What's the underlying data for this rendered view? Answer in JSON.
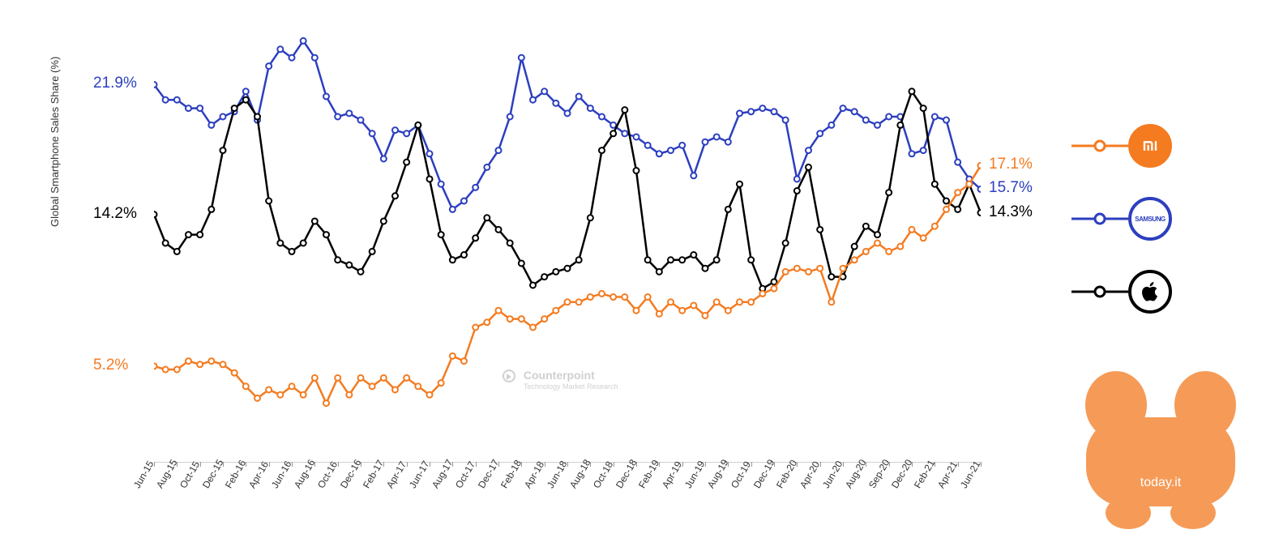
{
  "chart": {
    "type": "line",
    "y_axis_label": "Global Smartphone Sales Share (%)",
    "y_min": 0,
    "y_max": 25,
    "background_color": "#ffffff",
    "grid": false,
    "line_width": 2.5,
    "marker_style": "circle",
    "marker_radius": 3.5,
    "marker_fill": "#ffffff",
    "x_tick_fontsize": 12,
    "start_label_fontsize": 19,
    "end_label_fontsize": 19,
    "x_labels": [
      "Jun-15",
      "Aug-15",
      "Oct-15",
      "Dec-15",
      "Feb-16",
      "Apr-16",
      "Jun-16",
      "Aug-16",
      "Oct-16",
      "Dec-16",
      "Feb-17",
      "Apr-17",
      "Jun-17",
      "Aug-17",
      "Oct-17",
      "Dec-17",
      "Feb-18",
      "Apr-18",
      "Jun-18",
      "Aug-18",
      "Oct-18",
      "Dec-18",
      "Feb-19",
      "Apr-19",
      "Jun-19",
      "Aug-19",
      "Oct-19",
      "Dec-19",
      "Feb-20",
      "Apr-20",
      "Jun-20",
      "Aug-20",
      "Sep-20",
      "Dec-20",
      "Feb-21",
      "Apr-21",
      "Jun-21"
    ],
    "series": {
      "samsung": {
        "color": "#2c3fbf",
        "start_label": "21.9%",
        "end_label": "15.7%",
        "values": [
          21.9,
          21.0,
          21.0,
          20.5,
          20.5,
          19.5,
          20.0,
          20.3,
          21.5,
          19.8,
          23.0,
          24.0,
          23.5,
          24.5,
          23.5,
          21.2,
          20.0,
          20.2,
          19.8,
          19.0,
          17.5,
          19.2,
          19.0,
          19.5,
          17.8,
          16.0,
          14.5,
          15.0,
          15.8,
          17.0,
          18.0,
          20.0,
          23.5,
          21.0,
          21.5,
          20.8,
          20.2,
          21.2,
          20.5,
          20.0,
          19.5,
          19.0,
          18.8,
          18.3,
          17.8,
          18.0,
          18.3,
          16.5,
          18.5,
          18.8,
          18.5,
          20.2,
          20.3,
          20.5,
          20.3,
          19.8,
          16.3,
          18.0,
          19.0,
          19.5,
          20.5,
          20.3,
          19.8,
          19.5,
          20.0,
          20.0,
          17.8,
          18.0,
          20.0,
          19.8,
          17.3,
          16.3,
          15.7
        ],
        "legend": "SAMSUNG"
      },
      "apple": {
        "color": "#000000",
        "start_label": "14.2%",
        "end_label": "14.3%",
        "values": [
          14.2,
          12.5,
          12.0,
          13.0,
          13.0,
          14.5,
          18.0,
          20.5,
          21.0,
          20.0,
          15.0,
          12.5,
          12.0,
          12.5,
          13.8,
          13.0,
          11.5,
          11.2,
          10.8,
          12.0,
          13.8,
          15.3,
          17.3,
          19.5,
          16.3,
          13.0,
          11.5,
          11.8,
          12.8,
          14.0,
          13.3,
          12.5,
          11.3,
          10.0,
          10.5,
          10.8,
          11.0,
          11.5,
          14.0,
          18.0,
          19.0,
          20.4,
          16.8,
          11.5,
          10.8,
          11.5,
          11.5,
          11.8,
          11.0,
          11.5,
          14.5,
          16.0,
          11.5,
          9.8,
          10.2,
          12.5,
          15.6,
          17.0,
          13.3,
          10.5,
          10.5,
          12.3,
          13.5,
          13.0,
          15.5,
          19.5,
          21.5,
          20.5,
          16.0,
          15.0,
          14.5,
          16.0,
          14.3
        ],
        "legend": "APPLE"
      },
      "xiaomi": {
        "color": "#f47b20",
        "start_label": "5.2%",
        "end_label": "17.1%",
        "values": [
          5.2,
          5.0,
          5.0,
          5.5,
          5.3,
          5.5,
          5.3,
          4.8,
          4.0,
          3.3,
          3.8,
          3.5,
          4.0,
          3.5,
          4.5,
          3.0,
          4.5,
          3.5,
          4.5,
          4.0,
          4.5,
          3.8,
          4.5,
          4.0,
          3.5,
          4.2,
          5.8,
          5.5,
          7.5,
          7.8,
          8.5,
          8.0,
          8.0,
          7.5,
          8.0,
          8.5,
          9.0,
          9.0,
          9.3,
          9.5,
          9.3,
          9.3,
          8.5,
          9.3,
          8.3,
          9.0,
          8.5,
          8.8,
          8.2,
          9.0,
          8.5,
          9.0,
          9.0,
          9.5,
          9.8,
          10.8,
          11.0,
          10.8,
          11.0,
          9.0,
          11.0,
          11.5,
          12.0,
          12.5,
          12.0,
          12.3,
          13.3,
          12.8,
          13.5,
          14.5,
          15.5,
          16.0,
          17.1
        ],
        "legend": "XIAOMI"
      }
    },
    "watermark_center": "Counterpoint",
    "watermark_center_sub": "Technology Market Research"
  },
  "brand_watermark": {
    "line1": "XIAOMI",
    "line2": "today.it",
    "color_body": "#f48a3a",
    "color_text": "#ffffff"
  }
}
